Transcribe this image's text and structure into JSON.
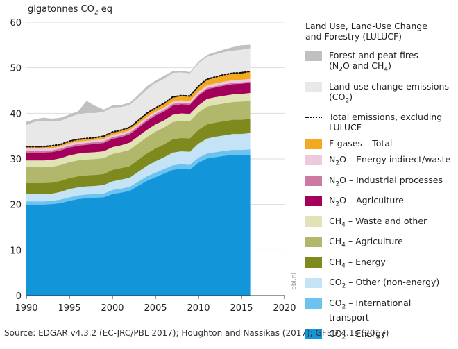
{
  "chart_data": {
    "type": "area",
    "stacked": true,
    "title": "",
    "ylabel": "gigatonnes CO2 eq",
    "xlim": [
      1990,
      2020
    ],
    "ylim": [
      0,
      60
    ],
    "xticks": [
      "1990",
      "1995",
      "2000",
      "2005",
      "2010",
      "2015",
      "2020"
    ],
    "yticks": [
      "0",
      "10",
      "20",
      "30",
      "40",
      "50",
      "60"
    ],
    "grid": "horizontal",
    "legend_position": "right",
    "x": [
      1990,
      1991,
      1992,
      1993,
      1994,
      1995,
      1996,
      1997,
      1998,
      1999,
      2000,
      2001,
      2002,
      2003,
      2004,
      2005,
      2006,
      2007,
      2008,
      2009,
      2010,
      2011,
      2012,
      2013,
      2014,
      2015,
      2016
    ],
    "series": [
      {
        "name": "CO2 – Energy",
        "color": "#1296d9",
        "values": [
          20.0,
          20.0,
          20.0,
          20.1,
          20.3,
          20.8,
          21.2,
          21.4,
          21.5,
          21.6,
          22.3,
          22.6,
          23.0,
          24.1,
          25.2,
          26.0,
          26.8,
          27.6,
          27.9,
          27.7,
          29.2,
          30.1,
          30.4,
          30.7,
          30.9,
          30.9,
          30.9
        ]
      },
      {
        "name": "CO2 – International transport",
        "color": "#6cc3ef",
        "values": [
          0.7,
          0.7,
          0.7,
          0.7,
          0.8,
          0.8,
          0.8,
          0.8,
          0.8,
          0.8,
          0.9,
          0.9,
          0.9,
          0.9,
          1.0,
          1.0,
          1.0,
          1.0,
          1.0,
          1.0,
          1.1,
          1.1,
          1.1,
          1.1,
          1.1,
          1.1,
          1.2
        ]
      },
      {
        "name": "CO2 – Other (non-energy)",
        "color": "#c5e3f6",
        "values": [
          1.6,
          1.6,
          1.6,
          1.6,
          1.7,
          1.8,
          1.8,
          1.8,
          1.8,
          1.9,
          1.9,
          2.0,
          2.0,
          2.2,
          2.3,
          2.5,
          2.6,
          2.8,
          2.8,
          2.9,
          3.1,
          3.3,
          3.4,
          3.4,
          3.5,
          3.5,
          3.6
        ]
      },
      {
        "name": "CH4 – Energy",
        "color": "#7f8a1e",
        "values": [
          2.4,
          2.4,
          2.4,
          2.4,
          2.4,
          2.4,
          2.4,
          2.4,
          2.4,
          2.4,
          2.5,
          2.5,
          2.5,
          2.6,
          2.7,
          2.8,
          2.8,
          2.9,
          2.9,
          2.9,
          3.0,
          3.1,
          3.1,
          3.1,
          3.1,
          3.1,
          3.1
        ]
      },
      {
        "name": "CH4 – Agriculture",
        "color": "#b1b86c",
        "values": [
          3.5,
          3.5,
          3.5,
          3.5,
          3.5,
          3.5,
          3.5,
          3.5,
          3.5,
          3.5,
          3.5,
          3.5,
          3.6,
          3.6,
          3.6,
          3.7,
          3.7,
          3.8,
          3.8,
          3.8,
          3.8,
          3.9,
          3.9,
          3.9,
          3.9,
          4.0,
          4.0
        ]
      },
      {
        "name": "CH4 – Waste and other",
        "color": "#e0e3b5",
        "values": [
          1.5,
          1.5,
          1.5,
          1.5,
          1.5,
          1.5,
          1.5,
          1.5,
          1.5,
          1.5,
          1.5,
          1.5,
          1.6,
          1.6,
          1.6,
          1.6,
          1.6,
          1.6,
          1.6,
          1.6,
          1.6,
          1.7,
          1.7,
          1.7,
          1.7,
          1.7,
          1.7
        ]
      },
      {
        "name": "N2O – Agriculture",
        "color": "#a4005b",
        "values": [
          1.7,
          1.7,
          1.7,
          1.7,
          1.7,
          1.7,
          1.7,
          1.7,
          1.8,
          1.8,
          1.8,
          1.8,
          1.8,
          1.8,
          1.9,
          1.9,
          1.9,
          2.0,
          2.0,
          2.0,
          2.1,
          2.1,
          2.1,
          2.2,
          2.2,
          2.2,
          2.2
        ]
      },
      {
        "name": "N2O – Industrial processes",
        "color": "#cc7aa3",
        "values": [
          0.4,
          0.4,
          0.4,
          0.4,
          0.4,
          0.4,
          0.4,
          0.4,
          0.4,
          0.4,
          0.4,
          0.4,
          0.4,
          0.4,
          0.4,
          0.4,
          0.4,
          0.4,
          0.4,
          0.3,
          0.3,
          0.3,
          0.3,
          0.3,
          0.3,
          0.3,
          0.3
        ]
      },
      {
        "name": "N2O – Energy indirect/waste",
        "color": "#ecc9dc",
        "values": [
          0.5,
          0.5,
          0.5,
          0.5,
          0.5,
          0.5,
          0.5,
          0.5,
          0.5,
          0.5,
          0.5,
          0.5,
          0.5,
          0.5,
          0.5,
          0.5,
          0.5,
          0.5,
          0.5,
          0.5,
          0.6,
          0.6,
          0.6,
          0.6,
          0.6,
          0.6,
          0.6
        ]
      },
      {
        "name": "F-gases – Total",
        "color": "#f3a91f",
        "values": [
          0.4,
          0.4,
          0.4,
          0.4,
          0.4,
          0.5,
          0.5,
          0.5,
          0.5,
          0.6,
          0.6,
          0.6,
          0.6,
          0.7,
          0.8,
          0.8,
          0.9,
          1.0,
          1.0,
          1.1,
          1.2,
          1.3,
          1.4,
          1.5,
          1.5,
          1.6,
          1.7
        ]
      },
      {
        "name": "Land-use change emissions (CO2)",
        "color": "#e8e8e8",
        "values": [
          4.8,
          5.5,
          5.7,
          5.5,
          5.2,
          5.3,
          5.5,
          5.6,
          5.4,
          5.4,
          5.4,
          5.1,
          5.0,
          5.1,
          5.3,
          5.5,
          5.4,
          5.3,
          5.1,
          5.0,
          5.0,
          5.0,
          5.0,
          5.0,
          5.0,
          5.0,
          5.0
        ]
      },
      {
        "name": "Forest and peat fires (N2O and CH4)",
        "color": "#c0c0c0",
        "values": [
          0.6,
          0.5,
          0.6,
          0.5,
          0.6,
          0.5,
          0.6,
          2.6,
          1.5,
          0.4,
          0.4,
          0.4,
          0.4,
          0.5,
          0.6,
          0.4,
          0.6,
          0.3,
          0.3,
          0.2,
          0.3,
          0.3,
          0.4,
          0.5,
          0.7,
          0.9,
          0.7
        ]
      }
    ],
    "total_excluding_lulucf": {
      "name": "Total emissions, excluding LULUCF",
      "style": "dotted",
      "color": "#111111",
      "values": [
        32.7,
        32.7,
        32.7,
        32.9,
        33.2,
        33.9,
        34.3,
        34.5,
        34.7,
        35.0,
        35.9,
        36.3,
        36.9,
        38.4,
        40.0,
        41.2,
        42.2,
        43.6,
        43.9,
        43.8,
        46.0,
        47.5,
        48.0,
        48.5,
        48.8,
        48.9,
        49.2
      ]
    }
  },
  "texts": {
    "y_unit": "gigatonnes CO",
    "y_unit_sub": "2",
    "y_unit_tail": " eq",
    "watermark": "pbl.nl",
    "source": "Source: EDGAR v4.3.2 (EC-JRC/PBL 2017); Houghton and Nassikas (2017); GFED 4.1s (2017)"
  },
  "legend": {
    "header_line1": "Land Use, Land-Use Change",
    "header_line2": "and Forestry (LULUCF)",
    "items": [
      {
        "kind": "box",
        "color": "#c0c0c0",
        "line1": "Forest and peat fires",
        "line2": "(N2O and CH4)"
      },
      {
        "kind": "box",
        "color": "#e8e8e8",
        "line1": "Land-use change emissions",
        "line2": "(CO2)"
      },
      {
        "kind": "dot",
        "color": "#111111",
        "line1": "Total emissions, excluding",
        "line2": "LULUCF"
      },
      {
        "kind": "box",
        "color": "#f3a91f",
        "line1": "F-gases – Total",
        "line2": ""
      },
      {
        "kind": "box",
        "color": "#ecc9dc",
        "line1": "N2O – Energy indirect/waste",
        "line2": ""
      },
      {
        "kind": "box",
        "color": "#cc7aa3",
        "line1": "N2O – Industrial processes",
        "line2": ""
      },
      {
        "kind": "box",
        "color": "#a4005b",
        "line1": "N2O – Agriculture",
        "line2": ""
      },
      {
        "kind": "box",
        "color": "#e0e3b5",
        "line1": "CH4 – Waste and other",
        "line2": ""
      },
      {
        "kind": "box",
        "color": "#b1b86c",
        "line1": "CH4 – Agriculture",
        "line2": ""
      },
      {
        "kind": "box",
        "color": "#7f8a1e",
        "line1": "CH4 – Energy",
        "line2": ""
      },
      {
        "kind": "box",
        "color": "#c5e3f6",
        "line1": "CO2 – Other (non-energy)",
        "line2": ""
      },
      {
        "kind": "box",
        "color": "#6cc3ef",
        "line1": "CO2 – International",
        "line2": "transport"
      },
      {
        "kind": "box",
        "color": "#1296d9",
        "line1": "CO2 – Energy",
        "line2": ""
      }
    ]
  }
}
